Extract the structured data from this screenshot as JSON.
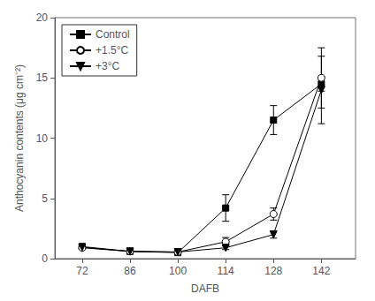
{
  "chart_data": {
    "type": "line",
    "xlabel": "DAFB",
    "ylabel": "Anthocyanin contents (μg cm⁻²)",
    "x": [
      72,
      86,
      100,
      114,
      128,
      142
    ],
    "xlim": [
      64,
      152
    ],
    "xticks": [
      72,
      86,
      100,
      114,
      128,
      142
    ],
    "ylim": [
      0,
      20
    ],
    "yticks": [
      0,
      5,
      10,
      15,
      20
    ],
    "grid": false,
    "legend": "upper left",
    "series": [
      {
        "name": "Control",
        "color": "black",
        "marker": "square",
        "values": [
          1.0,
          0.6,
          0.5,
          4.2,
          11.5,
          14.5
        ],
        "yerr": [
          0.1,
          0.05,
          0.1,
          1.1,
          1.2,
          0.6
        ]
      },
      {
        "name": "+1.5°C",
        "color": "black",
        "marker": "open circle",
        "values": [
          0.9,
          0.6,
          0.55,
          1.4,
          3.7,
          15.0
        ],
        "yerr": [
          0.1,
          0.05,
          0.08,
          0.35,
          0.5,
          2.5
        ]
      },
      {
        "name": "+3°C",
        "color": "black",
        "marker": "triangle-down",
        "values": [
          0.95,
          0.6,
          0.55,
          0.9,
          2.0,
          14.0
        ],
        "yerr": [
          0.1,
          0.05,
          0.08,
          0.15,
          0.3,
          2.8
        ]
      }
    ]
  }
}
